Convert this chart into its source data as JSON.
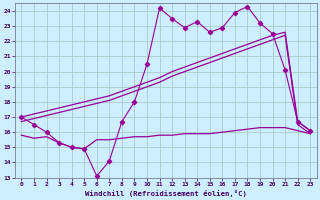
{
  "background_color": "#cceeff",
  "grid_color": "#aacccc",
  "line_color": "#990099",
  "xlim": [
    -0.5,
    23.5
  ],
  "ylim": [
    13,
    24.5
  ],
  "xlabel": "Windchill (Refroidissement éolien,°C)",
  "yticks": [
    13,
    14,
    15,
    16,
    17,
    18,
    19,
    20,
    21,
    22,
    23,
    24
  ],
  "xticks": [
    0,
    1,
    2,
    3,
    4,
    5,
    6,
    7,
    8,
    9,
    10,
    11,
    12,
    13,
    14,
    15,
    16,
    17,
    18,
    19,
    20,
    21,
    22,
    23
  ],
  "series1_x": [
    0,
    1,
    2,
    3,
    4,
    5,
    6,
    7,
    8,
    9,
    10,
    11,
    12,
    13,
    14,
    15,
    16,
    17,
    18,
    19,
    20,
    21,
    22,
    23
  ],
  "series1_y": [
    17.0,
    16.5,
    16.0,
    15.3,
    15.0,
    14.9,
    13.1,
    14.1,
    16.7,
    18.0,
    20.5,
    24.2,
    23.5,
    22.9,
    23.3,
    22.6,
    22.9,
    23.9,
    24.3,
    23.2,
    22.5,
    20.1,
    16.7,
    16.1
  ],
  "series2_x": [
    0,
    1,
    2,
    3,
    4,
    5,
    6,
    7,
    8,
    9,
    10,
    11,
    12,
    13,
    14,
    15,
    16,
    17,
    18,
    19,
    20,
    21,
    22,
    23
  ],
  "series2_y": [
    17.0,
    17.2,
    17.4,
    17.6,
    17.8,
    18.0,
    18.2,
    18.4,
    18.7,
    19.0,
    19.3,
    19.6,
    20.0,
    20.3,
    20.6,
    20.9,
    21.2,
    21.5,
    21.8,
    22.1,
    22.4,
    22.6,
    16.7,
    16.1
  ],
  "series3_x": [
    0,
    1,
    2,
    3,
    4,
    5,
    6,
    7,
    8,
    9,
    10,
    11,
    12,
    13,
    14,
    15,
    16,
    17,
    18,
    19,
    20,
    21,
    22,
    23
  ],
  "series3_y": [
    16.7,
    16.9,
    17.1,
    17.3,
    17.5,
    17.7,
    17.9,
    18.1,
    18.4,
    18.7,
    19.0,
    19.3,
    19.7,
    20.0,
    20.3,
    20.6,
    20.9,
    21.2,
    21.5,
    21.8,
    22.1,
    22.4,
    16.5,
    15.9
  ],
  "series4_x": [
    0,
    1,
    2,
    3,
    4,
    5,
    6,
    7,
    8,
    9,
    10,
    11,
    12,
    13,
    14,
    15,
    16,
    17,
    18,
    19,
    20,
    21,
    22,
    23
  ],
  "series4_y": [
    15.8,
    15.6,
    15.7,
    15.3,
    15.0,
    14.9,
    15.5,
    15.5,
    15.6,
    15.7,
    15.7,
    15.8,
    15.8,
    15.9,
    15.9,
    15.9,
    16.0,
    16.1,
    16.2,
    16.3,
    16.3,
    16.3,
    16.1,
    15.9
  ]
}
